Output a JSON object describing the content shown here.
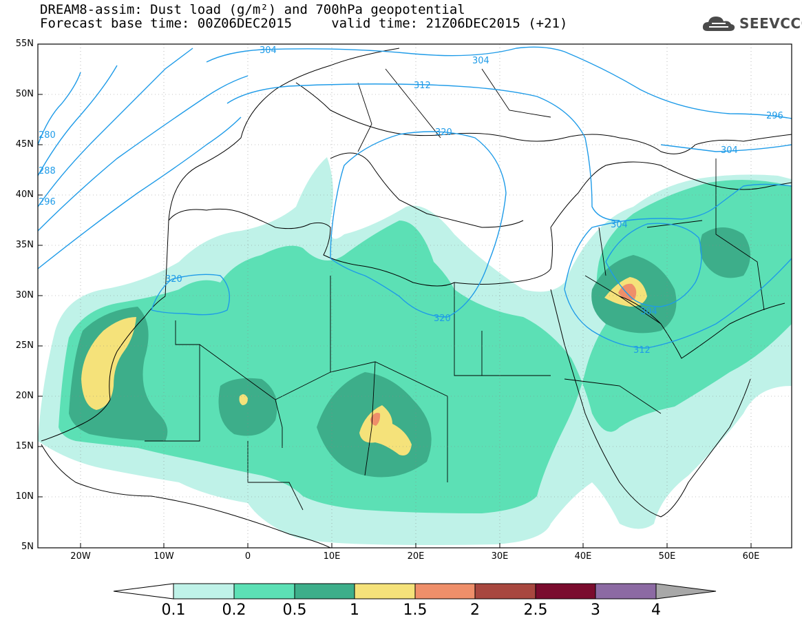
{
  "header": {
    "title_line1": "DREAM8-assim: Dust load (g/m²) and 700hPa geopotential",
    "title_line2": "Forecast base time: 00Z06DEC2015     valid time: 21Z06DEC2015 (+21)",
    "logo_text": "SEEVCCC"
  },
  "axes": {
    "lat_labels": [
      "55N",
      "50N",
      "45N",
      "40N",
      "35N",
      "30N",
      "25N",
      "20N",
      "15N",
      "10N",
      "5N"
    ],
    "lon_labels": [
      "20W",
      "10W",
      "0",
      "10E",
      "20E",
      "30E",
      "40E",
      "50E",
      "60E"
    ]
  },
  "contour_labels": [
    "304",
    "304",
    "312",
    "320",
    "320",
    "320",
    "296",
    "304",
    "304",
    "312",
    "304",
    "280",
    "288",
    "296"
  ],
  "colorbar": {
    "labels": [
      "0.1",
      "0.2",
      "0.5",
      "1",
      "1.5",
      "2",
      "2.5",
      "3",
      "4"
    ],
    "colors": [
      "#bff2e8",
      "#5ce0b5",
      "#3dae8a",
      "#f5e27a",
      "#ef8f6a",
      "#a8473f",
      "#7a0c2e",
      "#8c6aa3"
    ],
    "low_color": "#ffffff",
    "high_color": "#a8a8a8"
  },
  "chart_data": {
    "type": "heatmap",
    "variable": "Dust load (g/m²)",
    "overlay": "700hPa geopotential (dam)",
    "lat_range": [
      5,
      55
    ],
    "lon_range": [
      -25,
      65
    ],
    "levels": [
      0.1,
      0.2,
      0.5,
      1,
      1.5,
      2,
      2.5,
      3,
      4
    ],
    "contour_values": [
      280,
      288,
      296,
      304,
      312,
      320
    ]
  }
}
